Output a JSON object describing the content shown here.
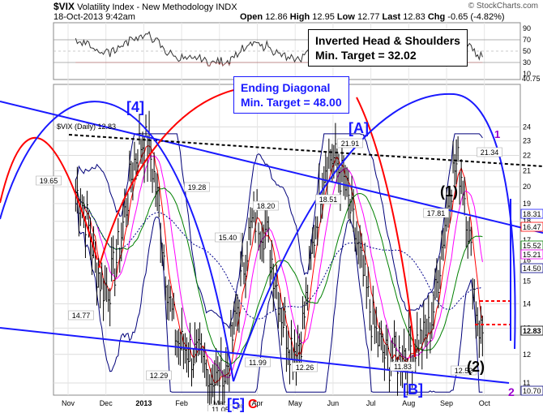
{
  "header": {
    "symbol": "$VIX",
    "name": "Volatility Index - New Methodology",
    "exchange": "INDX",
    "date_time": "18-Oct-2013 9:42am",
    "open_label": "Open",
    "open": "12.86",
    "high_label": "High",
    "high": "12.95",
    "low_label": "Low",
    "low": "12.77",
    "last_label": "Last",
    "last": "12.83",
    "chg_label": "Chg",
    "chg": "-0.65 (-4.82%)",
    "watermark": "© StockCharts.com"
  },
  "annotations": {
    "hs_line1": "Inverted Head & Shoulders",
    "hs_line2": "Min. Target = 32.02",
    "diag_line1": "Ending Diagonal",
    "diag_line2": "Min. Target = 48.00",
    "wave_4": "[4]",
    "wave_A": "[A]",
    "wave_1p": "(1)",
    "wave_2p": "(2)",
    "wave_B": "[B]",
    "wave_5": "[5]",
    "wave_C": "C",
    "wave_1": "1",
    "wave_2": "2",
    "wave_pr": "pr"
  },
  "colors": {
    "price_bars": "#000000",
    "trendlines": "#1a1aff",
    "cycle_red": "#ff0000",
    "cycle_blue": "#1a1aff",
    "bollinger": "#00007a",
    "ma_green": "#008000",
    "ma_magenta": "#ff00ff",
    "ma_blue_dotted": "#00008b",
    "dashed_black": "#000000",
    "dashed_red": "#ff0000",
    "wave_small": "#9900cc"
  },
  "chart_data": {
    "type": "line",
    "title": "$VIX (Daily) 12.83",
    "x_tick_labels": [
      "Nov",
      "Dec",
      "2013",
      "Feb",
      "Mar",
      "Apr",
      "May",
      "Jun",
      "Jul",
      "Aug",
      "Sep",
      "Oct"
    ],
    "y_ticks": [
      11,
      12,
      13,
      14,
      15,
      16,
      17,
      18,
      19,
      20,
      21,
      22,
      23,
      24
    ],
    "ylim": [
      10.6,
      24.5
    ],
    "y_scale": "log",
    "price_labels": [
      {
        "text": "19.65",
        "month": "Oct-2012"
      },
      {
        "text": "14.77",
        "month": "Nov-2012"
      },
      {
        "text": "19.28",
        "month": "Feb-2013"
      },
      {
        "text": "12.29",
        "month": "Feb-2013"
      },
      {
        "text": "15.40",
        "month": "Mar-2013"
      },
      {
        "text": "11.05",
        "month": "Mar-2013"
      },
      {
        "text": "18.20",
        "month": "Apr-2013"
      },
      {
        "text": "11.99",
        "month": "Apr-2013"
      },
      {
        "text": "12.26",
        "month": "May-2013"
      },
      {
        "text": "18.51",
        "month": "Jun-2013"
      },
      {
        "text": "21.91",
        "month": "Jun-2013"
      },
      {
        "text": "11.83",
        "month": "Aug-2013"
      },
      {
        "text": "17.81",
        "month": "Aug-2013"
      },
      {
        "text": "12.52",
        "month": "Sep-2013"
      },
      {
        "text": "21.34",
        "month": "Oct-2013"
      }
    ],
    "right_axis_values": [
      "18.31",
      "16.47",
      "15.52",
      "15.21",
      "14.50",
      "12.83",
      "10.70"
    ],
    "key_points": {
      "x": [
        "Oct-2012",
        "Nov-2012",
        "Jan-2013",
        "Feb-2013",
        "Mar-2013",
        "Apr-2013",
        "May-2013",
        "Jun-2013",
        "Aug-2013",
        "Sep-2013",
        "Oct-2013",
        "Oct-2013"
      ],
      "close": [
        19.65,
        14.77,
        23.0,
        12.29,
        11.05,
        18.2,
        12.26,
        21.91,
        11.83,
        12.52,
        21.34,
        12.83
      ]
    },
    "rsi_panel": {
      "y_ticks": [
        10,
        30,
        50,
        70,
        90
      ],
      "last_value": "40.75"
    }
  }
}
